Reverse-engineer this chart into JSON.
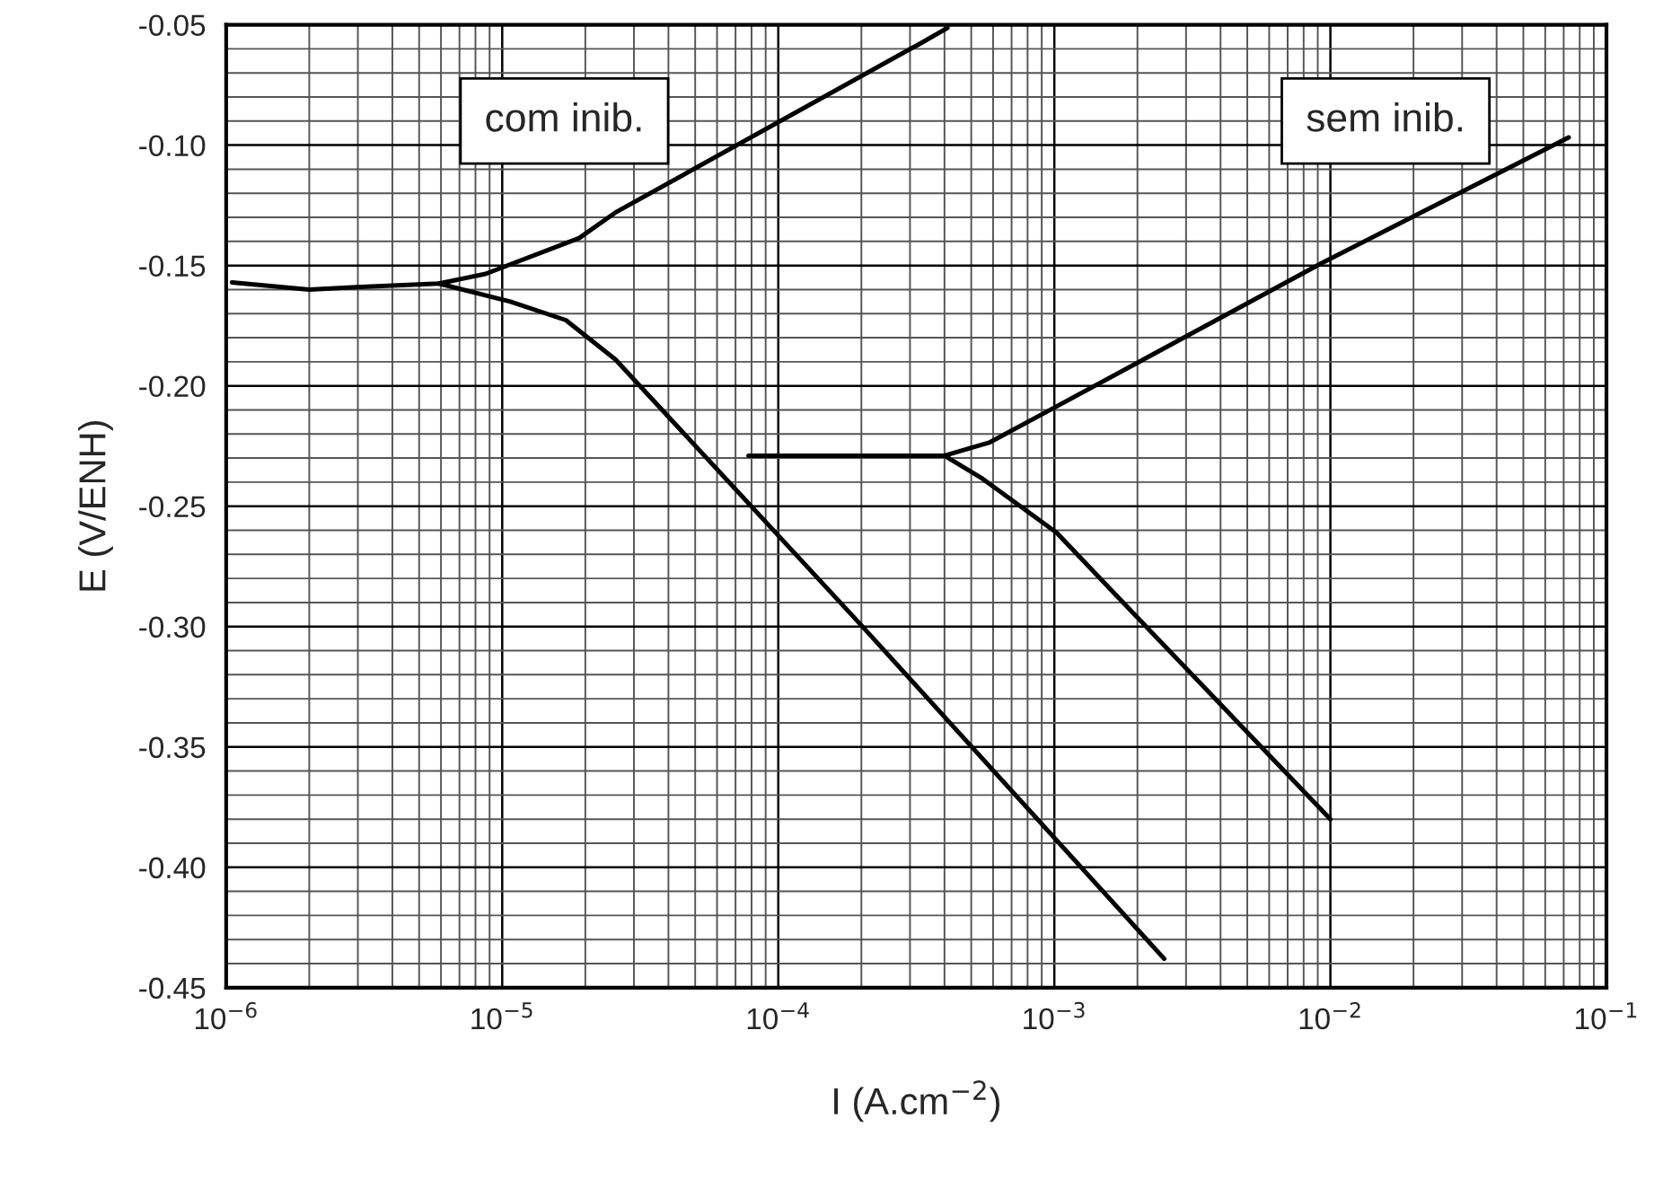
{
  "chart_data": {
    "type": "line",
    "xlabel": "I (A.cm$^{−2}$)",
    "ylabel": "E (V/ENH)",
    "log": "x",
    "annotations": [
      "com inib.",
      "sem inib."
    ],
    "series": [
      {
        "color": "#000000",
        "x": [
          1.05e-06,
          2e-06,
          2.95e-06,
          5.9e-06,
          8.7e-06,
          1.9e-05,
          2.57e-05,
          0.00033,
          0.00041
        ],
        "values": [
          -0.157,
          -0.16,
          -0.159,
          -0.1575,
          -0.1535,
          -0.1386,
          -0.128,
          -0.0575,
          -0.0513
        ]
      },
      {
        "color": "#000000",
        "x": [
          5.9e-06,
          1.07e-05,
          1.7e-05,
          2.57e-05,
          0.0002,
          0.0025
        ],
        "values": [
          -0.1575,
          -0.165,
          -0.1727,
          -0.189,
          -0.2995,
          -0.438
        ]
      },
      {
        "color": "#000000",
        "x": [
          7.8e-05,
          0.00036,
          0.0004,
          0.00058,
          0.00093,
          0.0093,
          0.073
        ],
        "values": [
          -0.229,
          -0.229,
          -0.229,
          -0.2236,
          -0.211,
          -0.149,
          -0.0968
        ]
      },
      {
        "color": "#000000",
        "x": [
          0.0004,
          0.00055,
          0.00102,
          0.0016,
          0.01
        ],
        "values": [
          -0.229,
          -0.2386,
          -0.261,
          -0.2846,
          -0.38
        ]
      }
    ],
    "xlim": [
      1e-06,
      0.1
    ],
    "xticks": [
      {
        "value": 1e-06,
        "label": "10$^{−6}$"
      },
      {
        "value": 1e-05,
        "label": "10$^{−5}$"
      },
      {
        "value": 0.0001,
        "label": "10$^{−4}$"
      },
      {
        "value": 0.001,
        "label": "10$^{−3}$"
      },
      {
        "value": 0.01,
        "label": "10$^{−2}$"
      },
      {
        "value": 0.1,
        "label": "10$^{−1}$"
      }
    ],
    "ylim": [
      -0.45,
      -0.05
    ],
    "yticks": [
      {
        "value": -0.45,
        "label": "-0.45"
      },
      {
        "value": -0.4,
        "label": "-0.40"
      },
      {
        "value": -0.35,
        "label": "-0.35"
      },
      {
        "value": -0.3,
        "label": "-0.30"
      },
      {
        "value": -0.25,
        "label": "-0.25"
      },
      {
        "value": -0.2,
        "label": "-0.20"
      },
      {
        "value": -0.15,
        "label": "-0.15"
      },
      {
        "value": -0.1,
        "label": "-0.10"
      },
      {
        "value": -0.05,
        "label": "-0.05"
      }
    ],
    "grid": true
  }
}
